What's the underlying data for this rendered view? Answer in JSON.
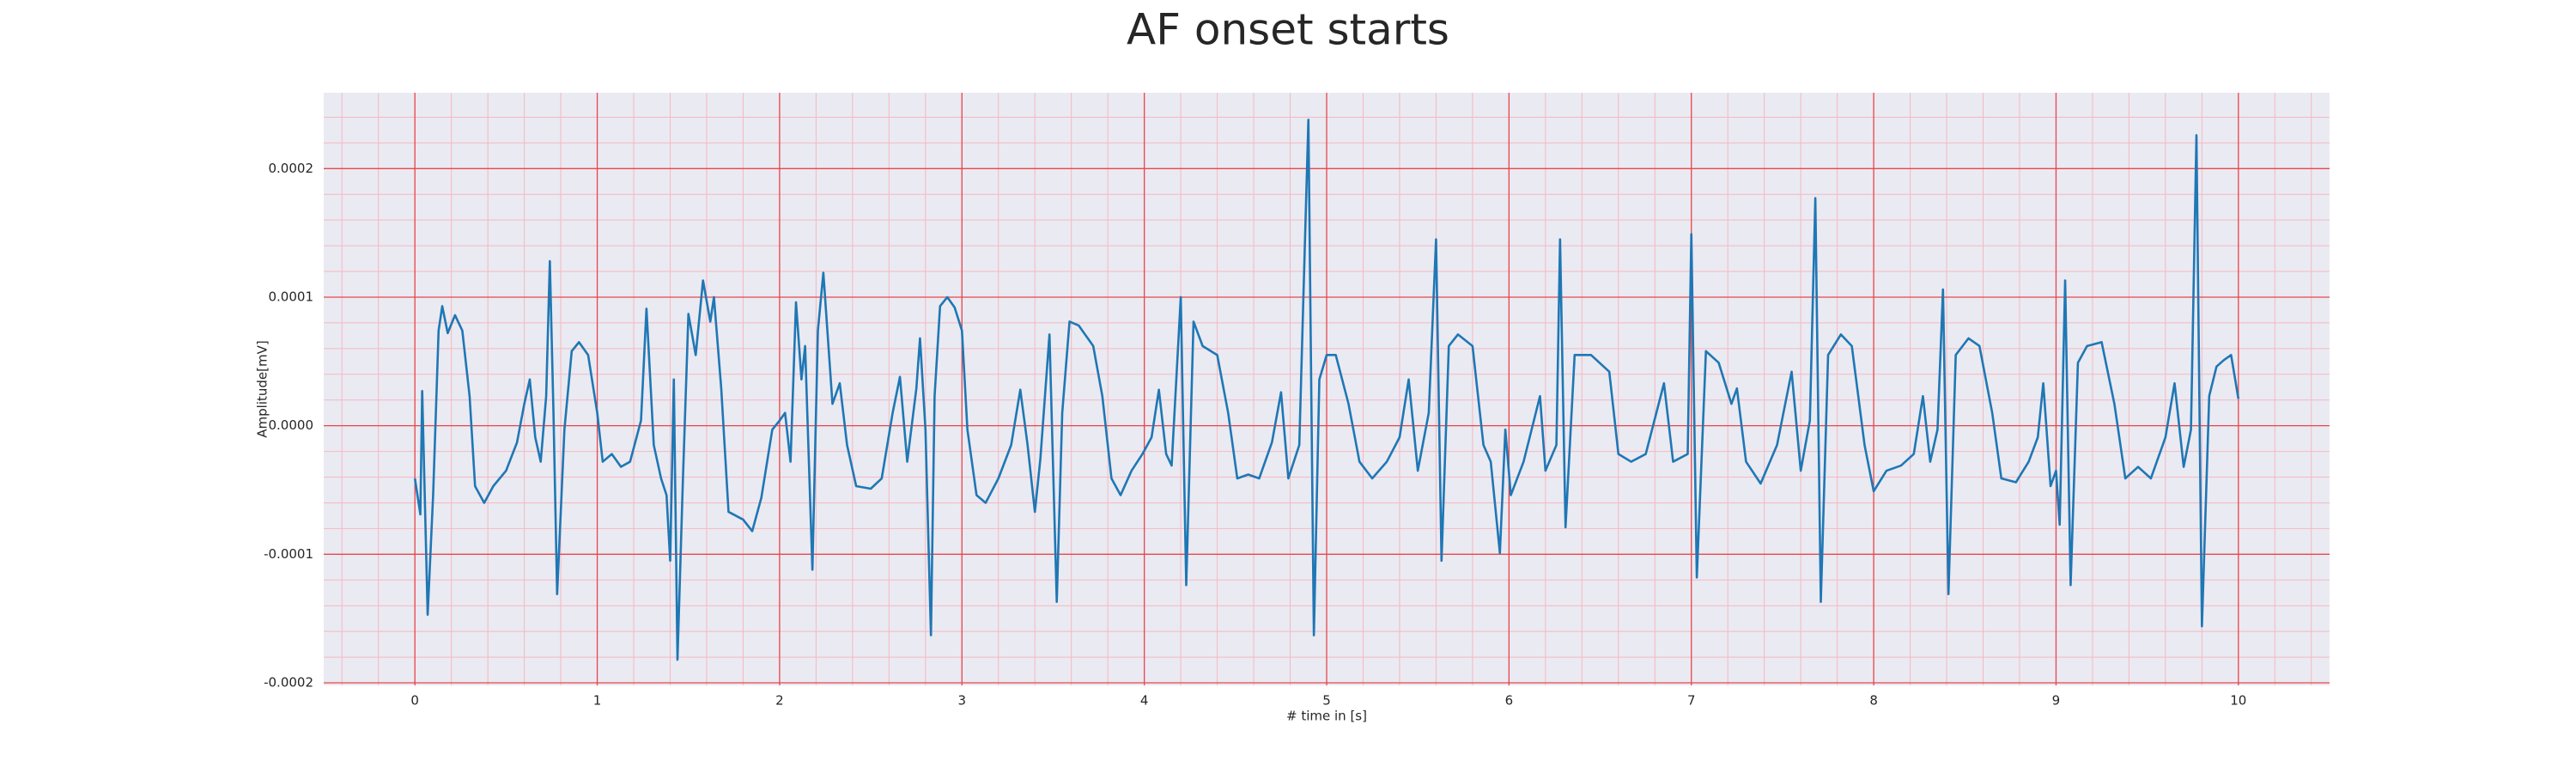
{
  "chart_data": {
    "type": "line",
    "title": "AF onset starts",
    "x_label": "# time in [s]",
    "y_label": "Amplitude[mV]",
    "xlim": [
      -0.5,
      10.5
    ],
    "ylim": [
      -0.000202,
      0.000259
    ],
    "xticks": [
      0,
      1,
      2,
      3,
      4,
      5,
      6,
      7,
      8,
      9,
      10
    ],
    "yticks": [
      -0.0002,
      -0.0001,
      {
        "value": 0,
        "label": "0.0000"
      },
      0.0001,
      0.0002
    ],
    "grid": true,
    "minor_grid": true,
    "series": [
      {
        "color": "#1f77b4",
        "x": [
          0,
          0.03,
          0.04,
          0.07,
          0.1,
          0.13,
          0.15,
          0.18,
          0.22,
          0.26,
          0.3,
          0.33,
          0.38,
          0.43,
          0.5,
          0.56,
          0.6,
          0.63,
          0.66,
          0.69,
          0.72,
          0.74,
          0.76,
          0.78,
          0.82,
          0.86,
          0.9,
          0.95,
          1.0,
          1.03,
          1.08,
          1.13,
          1.18,
          1.24,
          1.27,
          1.31,
          1.35,
          1.38,
          1.4,
          1.42,
          1.44,
          1.47,
          1.5,
          1.54,
          1.58,
          1.62,
          1.64,
          1.68,
          1.72,
          1.8,
          1.85,
          1.9,
          1.96,
          2.0,
          2.03,
          2.06,
          2.09,
          2.12,
          2.14,
          2.18,
          2.21,
          2.24,
          2.29,
          2.33,
          2.37,
          2.42,
          2.5,
          2.56,
          2.62,
          2.66,
          2.7,
          2.75,
          2.77,
          2.8,
          2.83,
          2.85,
          2.88,
          2.92,
          2.96,
          3.0,
          3.03,
          3.08,
          3.13,
          3.2,
          3.27,
          3.32,
          3.36,
          3.4,
          3.43,
          3.48,
          3.52,
          3.55,
          3.59,
          3.64,
          3.72,
          3.77,
          3.82,
          3.87,
          3.93,
          3.99,
          4.04,
          4.08,
          4.12,
          4.15,
          4.2,
          4.23,
          4.27,
          4.32,
          4.4,
          4.46,
          4.51,
          4.57,
          4.63,
          4.7,
          4.75,
          4.79,
          4.85,
          4.88,
          4.9,
          4.93,
          4.96,
          5.0,
          5.05,
          5.12,
          5.18,
          5.25,
          5.33,
          5.4,
          5.45,
          5.5,
          5.56,
          5.6,
          5.63,
          5.67,
          5.72,
          5.8,
          5.86,
          5.9,
          5.95,
          5.98,
          6.01,
          6.08,
          6.17,
          6.2,
          6.26,
          6.28,
          6.31,
          6.36,
          6.45,
          6.55,
          6.6,
          6.67,
          6.75,
          6.85,
          6.9,
          6.98,
          7.0,
          7.03,
          7.08,
          7.15,
          7.22,
          7.25,
          7.3,
          7.38,
          7.47,
          7.55,
          7.6,
          7.65,
          7.68,
          7.71,
          7.75,
          7.82,
          7.88,
          7.95,
          8.0,
          8.07,
          8.15,
          8.22,
          8.27,
          8.31,
          8.35,
          8.38,
          8.41,
          8.45,
          8.52,
          8.58,
          8.65,
          8.7,
          8.78,
          8.85,
          8.9,
          8.93,
          8.97,
          9.0,
          9.02,
          9.05,
          9.08,
          9.12,
          9.17,
          9.25,
          9.32,
          9.38,
          9.45,
          9.52,
          9.6,
          9.65,
          9.7,
          9.74,
          9.77,
          9.8,
          9.84,
          9.88,
          9.92,
          9.96,
          10.0
        ],
        "values": [
          -4.1e-05,
          -6.9e-05,
          2.7e-05,
          -0.000147,
          -5.4e-05,
          7.4e-05,
          9.3e-05,
          7.2e-05,
          8.6e-05,
          7.4e-05,
          2.3e-05,
          -4.7e-05,
          -6e-05,
          -4.7e-05,
          -3.5e-05,
          -1.3e-05,
          1.7e-05,
          3.6e-05,
          -9e-06,
          -2.8e-05,
          2.3e-05,
          0.000128,
          1e-05,
          -0.000131,
          -3e-06,
          5.8e-05,
          6.5e-05,
          5.5e-05,
          1e-05,
          -2.8e-05,
          -2.2e-05,
          -3.2e-05,
          -2.8e-05,
          4e-06,
          9.1e-05,
          -1.5e-05,
          -4.1e-05,
          -5.4e-05,
          -0.000105,
          3.6e-05,
          -0.000182,
          -4.1e-05,
          8.7e-05,
          5.5e-05,
          0.000113,
          8.1e-05,
          0.0001,
          2.9e-05,
          -6.7e-05,
          -7.3e-05,
          -8.2e-05,
          -5.6e-05,
          -3e-06,
          4e-06,
          1e-05,
          -2.8e-05,
          9.6e-05,
          3.6e-05,
          6.2e-05,
          -0.000112,
          7.4e-05,
          0.000119,
          1.7e-05,
          3.3e-05,
          -1.5e-05,
          -4.7e-05,
          -4.9e-05,
          -4.1e-05,
          1e-05,
          3.8e-05,
          -2.8e-05,
          2.9e-05,
          6.8e-05,
          -3e-06,
          -0.000163,
          2.3e-05,
          9.3e-05,
          0.0001,
          9.2e-05,
          7.4e-05,
          -3e-06,
          -5.4e-05,
          -6e-05,
          -4.1e-05,
          -1.5e-05,
          2.8e-05,
          -1.5e-05,
          -6.7e-05,
          -2.6e-05,
          7.1e-05,
          -0.000137,
          1e-05,
          8.1e-05,
          7.8e-05,
          6.2e-05,
          2.3e-05,
          -4.1e-05,
          -5.4e-05,
          -3.5e-05,
          -2.2e-05,
          -9e-06,
          2.8e-05,
          -2.2e-05,
          -3.1e-05,
          0.0001,
          -0.000124,
          8.1e-05,
          6.2e-05,
          5.5e-05,
          1e-05,
          -4.1e-05,
          -3.8e-05,
          -4.1e-05,
          -1.3e-05,
          2.6e-05,
          -4.1e-05,
          -1.5e-05,
          0.000138,
          0.000238,
          -0.000163,
          3.6e-05,
          5.5e-05,
          5.5e-05,
          1.7e-05,
          -2.8e-05,
          -4.1e-05,
          -2.8e-05,
          -9e-06,
          3.6e-05,
          -3.5e-05,
          1e-05,
          0.000145,
          -0.000105,
          6.2e-05,
          7.1e-05,
          6.2e-05,
          -1.5e-05,
          -2.8e-05,
          -9.9e-05,
          -3e-06,
          -5.4e-05,
          -2.8e-05,
          2.3e-05,
          -3.5e-05,
          -1.5e-05,
          0.000145,
          -7.9e-05,
          5.5e-05,
          5.5e-05,
          4.2e-05,
          -2.2e-05,
          -2.8e-05,
          -2.2e-05,
          3.3e-05,
          -2.8e-05,
          -2.2e-05,
          0.000149,
          -0.000118,
          5.8e-05,
          4.9e-05,
          1.7e-05,
          2.9e-05,
          -2.8e-05,
          -4.5e-05,
          -1.5e-05,
          4.2e-05,
          -3.5e-05,
          4e-06,
          0.000177,
          -0.000137,
          5.5e-05,
          7.1e-05,
          6.2e-05,
          -1.5e-05,
          -5.1e-05,
          -3.5e-05,
          -3.1e-05,
          -2.2e-05,
          2.3e-05,
          -2.8e-05,
          -3e-06,
          0.000106,
          -0.000131,
          5.5e-05,
          6.8e-05,
          6.2e-05,
          1e-05,
          -4.1e-05,
          -4.4e-05,
          -2.8e-05,
          -9e-06,
          3.3e-05,
          -4.7e-05,
          -3.5e-05,
          -7.7e-05,
          0.000113,
          -0.000124,
          4.9e-05,
          6.2e-05,
          6.5e-05,
          1.7e-05,
          -4.1e-05,
          -3.2e-05,
          -4.1e-05,
          -9e-06,
          3.3e-05,
          -3.2e-05,
          -3e-06,
          0.000226,
          -0.000156,
          2.3e-05,
          4.6e-05,
          5.1e-05,
          5.5e-05,
          2.1e-05
        ]
      }
    ]
  }
}
